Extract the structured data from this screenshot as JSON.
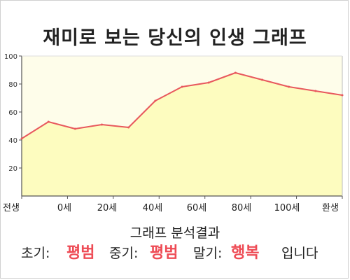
{
  "title": "재미로 보는 당신의 인생 그래프",
  "chart_data": {
    "type": "area",
    "x_ticks": [
      "전생",
      "0세",
      "20세",
      "40세",
      "60세",
      "80세",
      "100세",
      "환생"
    ],
    "y_ticks": [
      "20",
      "40",
      "60",
      "80",
      "100"
    ],
    "ylim": [
      0,
      100
    ],
    "grid": false,
    "values": [
      41,
      53,
      48,
      51,
      49,
      68,
      78,
      81,
      88,
      83,
      78,
      75,
      72
    ],
    "colors": {
      "line": "#e8585d",
      "fill": "#fdfcbf",
      "plot_bg": "#fefdea"
    }
  },
  "analysis": {
    "title": "그래프 분석결과",
    "early_label": "초기:",
    "early_value": "평범",
    "mid_label": "중기:",
    "mid_value": "평범",
    "late_label": "말기:",
    "late_value": "행복",
    "suffix": "입니다"
  }
}
